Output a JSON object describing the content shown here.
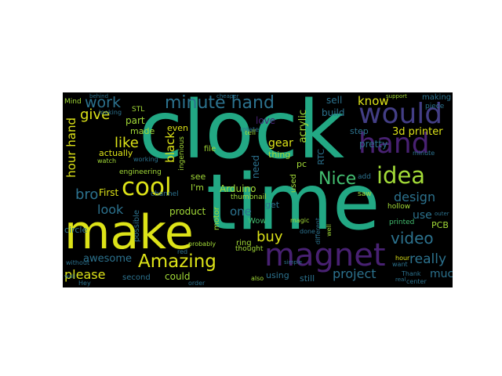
{
  "colors": {
    "background": "#000000",
    "teal": "#22a884",
    "yellow": "#dde318",
    "lime": "#a2da37",
    "purple": "#433e85",
    "violet": "#482172",
    "blue": "#365c8d",
    "steel": "#2c728e",
    "green": "#43bf71"
  },
  "words": {
    "clock": "clock",
    "time": "time",
    "make": "make",
    "magnet": "magnet",
    "would": "would",
    "hand": "hand",
    "idea": "idea",
    "cool": "cool",
    "amazing": "Amazing",
    "minute_hand": "minute hand",
    "nice": "Nice",
    "video": "video",
    "work": "work",
    "give": "give",
    "like": "like",
    "bro": "bro",
    "look": "look",
    "please": "please",
    "really": "really",
    "know": "know",
    "design": "design",
    "buy": "buy",
    "project": "project",
    "much": "much",
    "use": "use",
    "one": "one",
    "hour_hand": "hour hand",
    "arduino": "Arduino",
    "gear": "gear",
    "printer_3d": "3d printer",
    "awesome": "awesome",
    "could": "could",
    "product": "product",
    "circle": "circle",
    "first": "First",
    "part": "part",
    "made": "made",
    "even": "even",
    "black": "black",
    "love": "love",
    "acrylic": "acrylic",
    "sell": "sell",
    "build": "build",
    "step": "step",
    "pretty": "pretty",
    "see": "see",
    "need": "need",
    "get": "get",
    "im": "I'm",
    "thing": "thing",
    "pc": "pc",
    "rtc": "RTC",
    "actually": "actually",
    "engineering": "engineering",
    "ring": "ring",
    "using": "using",
    "still": "still",
    "second": "second",
    "wow": "Wow",
    "thought": "thought",
    "used": "used",
    "printed": "printed",
    "hollow": "hollow",
    "pcb": "PCB",
    "tell": "tell",
    "file": "file",
    "thumbnail": "thumbnail",
    "rotate": "rotate",
    "possible": "possible",
    "channel": "channel",
    "watch": "watch",
    "motor": "motor",
    "want": "want",
    "hour": "hour",
    "saw": "saw",
    "center": "center",
    "making": "making",
    "piece": "piece",
    "add": "add",
    "thank": "Thank",
    "mind": "Mind",
    "wall": "wall",
    "minute": "minute",
    "stl": "STL",
    "probably": "probably",
    "done": "done",
    "ingenious": "ingenious",
    "order": "order",
    "support": "support",
    "real": "real",
    "different": "different",
    "simple": "simple",
    "working": "working",
    "looking": "looking",
    "also": "also",
    "hey": "Hey",
    "behind": "behind",
    "magic": "magic",
    "outer": "outer",
    "red": "red",
    "well": "well",
    "without": "without",
    "cheaper": "cheaper"
  }
}
